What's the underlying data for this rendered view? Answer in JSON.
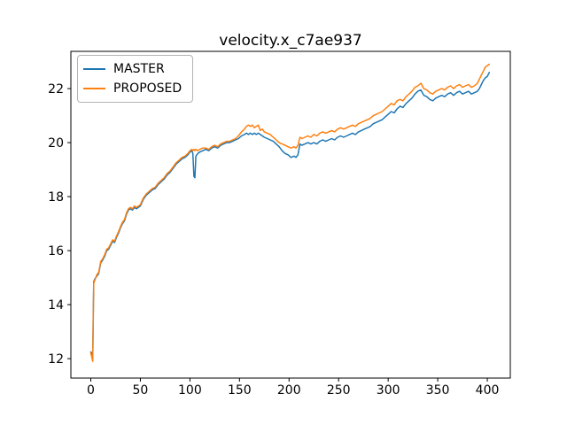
{
  "chart_data": {
    "type": "line",
    "title": "velocity.x_c7ae937",
    "xlabel": "",
    "ylabel": "",
    "grid": false,
    "legend_position": "upper-left",
    "xlim": [
      -20.1,
      423.2
    ],
    "ylim": [
      11.28,
      23.38
    ],
    "xticks": [
      0,
      50,
      100,
      150,
      200,
      250,
      300,
      350,
      400
    ],
    "yticks": [
      12,
      14,
      16,
      18,
      20,
      22
    ],
    "x": [
      0,
      1,
      2,
      3,
      4,
      5,
      6,
      8,
      10,
      12,
      14,
      16,
      18,
      20,
      22,
      24,
      26,
      28,
      30,
      32,
      34,
      36,
      38,
      40,
      42,
      44,
      46,
      48,
      50,
      53,
      56,
      59,
      62,
      65,
      68,
      71,
      74,
      77,
      80,
      83,
      86,
      89,
      92,
      95,
      98,
      100,
      102,
      103,
      104,
      105,
      106,
      108,
      110,
      113,
      116,
      119,
      122,
      125,
      128,
      131,
      134,
      137,
      140,
      143,
      146,
      149,
      152,
      155,
      157,
      159,
      161,
      163,
      165,
      167,
      169,
      171,
      173,
      175,
      178,
      181,
      184,
      187,
      190,
      193,
      196,
      199,
      202,
      205,
      207,
      209,
      211,
      213,
      216,
      219,
      222,
      225,
      228,
      231,
      234,
      237,
      240,
      243,
      246,
      249,
      252,
      255,
      258,
      261,
      264,
      267,
      270,
      273,
      276,
      279,
      282,
      285,
      288,
      291,
      294,
      297,
      300,
      303,
      306,
      309,
      312,
      315,
      318,
      321,
      324,
      327,
      330,
      333,
      336,
      339,
      342,
      345,
      348,
      351,
      354,
      357,
      360,
      363,
      366,
      369,
      372,
      375,
      378,
      381,
      384,
      387,
      390,
      392,
      394,
      396,
      398,
      400,
      402
    ],
    "series": [
      {
        "name": "MASTER",
        "color": "#1f77b4",
        "values": [
          12.25,
          12.15,
          12.25,
          14.85,
          14.95,
          15.0,
          15.05,
          15.15,
          15.55,
          15.65,
          15.8,
          16.0,
          16.05,
          16.2,
          16.35,
          16.3,
          16.5,
          16.65,
          16.85,
          17.0,
          17.1,
          17.35,
          17.5,
          17.55,
          17.5,
          17.6,
          17.55,
          17.6,
          17.65,
          17.9,
          18.05,
          18.15,
          18.25,
          18.3,
          18.45,
          18.55,
          18.65,
          18.8,
          18.9,
          19.05,
          19.2,
          19.3,
          19.4,
          19.45,
          19.55,
          19.65,
          19.7,
          19.6,
          18.75,
          18.7,
          19.5,
          19.6,
          19.65,
          19.7,
          19.75,
          19.7,
          19.8,
          19.85,
          19.8,
          19.9,
          19.95,
          20.0,
          20.0,
          20.05,
          20.1,
          20.15,
          20.25,
          20.3,
          20.35,
          20.3,
          20.35,
          20.3,
          20.35,
          20.3,
          20.35,
          20.3,
          20.25,
          20.2,
          20.15,
          20.1,
          20.05,
          19.95,
          19.85,
          19.7,
          19.6,
          19.55,
          19.45,
          19.5,
          19.45,
          19.55,
          19.95,
          19.9,
          19.95,
          20.0,
          19.95,
          20.0,
          19.95,
          20.05,
          20.1,
          20.05,
          20.1,
          20.15,
          20.1,
          20.2,
          20.25,
          20.2,
          20.25,
          20.3,
          20.35,
          20.3,
          20.4,
          20.45,
          20.5,
          20.55,
          20.6,
          20.7,
          20.75,
          20.8,
          20.85,
          20.95,
          21.05,
          21.15,
          21.1,
          21.25,
          21.35,
          21.3,
          21.45,
          21.55,
          21.65,
          21.8,
          21.9,
          21.95,
          21.75,
          21.7,
          21.6,
          21.55,
          21.65,
          21.7,
          21.75,
          21.7,
          21.8,
          21.85,
          21.75,
          21.85,
          21.9,
          21.8,
          21.85,
          21.9,
          21.8,
          21.85,
          21.9,
          22.0,
          22.15,
          22.3,
          22.4,
          22.45,
          22.6
        ]
      },
      {
        "name": "PROPOSED",
        "color": "#ff7f0e",
        "values": [
          12.2,
          12.05,
          11.9,
          14.8,
          14.9,
          15.0,
          15.1,
          15.2,
          15.6,
          15.7,
          15.85,
          16.05,
          16.1,
          16.25,
          16.4,
          16.35,
          16.55,
          16.7,
          16.9,
          17.05,
          17.15,
          17.4,
          17.55,
          17.6,
          17.55,
          17.65,
          17.6,
          17.65,
          17.7,
          17.95,
          18.1,
          18.2,
          18.3,
          18.35,
          18.5,
          18.6,
          18.7,
          18.85,
          18.95,
          19.1,
          19.25,
          19.35,
          19.45,
          19.5,
          19.6,
          19.7,
          19.75,
          19.7,
          19.75,
          19.7,
          19.75,
          19.7,
          19.75,
          19.8,
          19.8,
          19.75,
          19.85,
          19.9,
          19.85,
          19.95,
          20.0,
          20.05,
          20.05,
          20.1,
          20.15,
          20.25,
          20.4,
          20.5,
          20.6,
          20.65,
          20.6,
          20.65,
          20.55,
          20.6,
          20.65,
          20.45,
          20.5,
          20.4,
          20.35,
          20.3,
          20.2,
          20.1,
          20.0,
          19.95,
          19.9,
          19.85,
          19.8,
          19.85,
          19.8,
          19.9,
          20.2,
          20.15,
          20.2,
          20.25,
          20.2,
          20.3,
          20.25,
          20.35,
          20.4,
          20.35,
          20.4,
          20.45,
          20.4,
          20.5,
          20.55,
          20.5,
          20.55,
          20.6,
          20.65,
          20.6,
          20.7,
          20.75,
          20.8,
          20.85,
          20.9,
          21.0,
          21.05,
          21.1,
          21.15,
          21.25,
          21.35,
          21.45,
          21.4,
          21.55,
          21.6,
          21.55,
          21.7,
          21.8,
          21.9,
          22.05,
          22.1,
          22.2,
          22.0,
          21.95,
          21.85,
          21.8,
          21.9,
          21.95,
          22.0,
          21.95,
          22.05,
          22.1,
          22.0,
          22.1,
          22.15,
          22.05,
          22.1,
          22.15,
          22.05,
          22.1,
          22.2,
          22.35,
          22.5,
          22.65,
          22.8,
          22.85,
          22.9
        ]
      }
    ]
  }
}
